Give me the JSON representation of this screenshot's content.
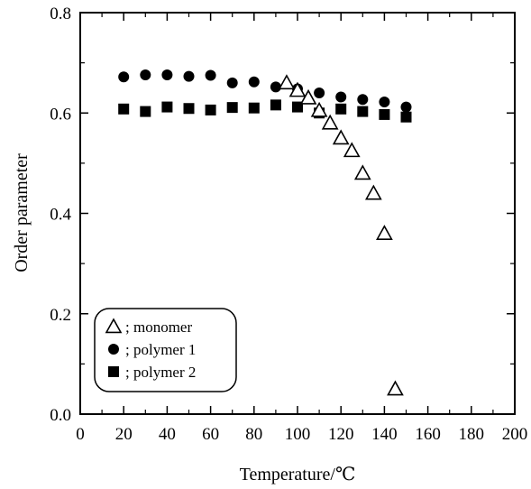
{
  "chart_data": {
    "type": "scatter",
    "title": "",
    "xlabel": "Temperature/℃",
    "ylabel": "Order parameter",
    "xlim": [
      0,
      200
    ],
    "ylim": [
      0,
      0.8
    ],
    "xticks": [
      "0",
      "20",
      "40",
      "60",
      "80",
      "100",
      "120",
      "140",
      "160",
      "180",
      "200"
    ],
    "yticks": [
      "0.0",
      "0.2",
      "0.4",
      "0.6",
      "0.8"
    ],
    "grid": false,
    "legend_position": "bottom-left",
    "series": [
      {
        "name": "; monomer",
        "marker": "open-triangle",
        "color": "#000000",
        "points": [
          [
            95,
            0.66
          ],
          [
            100,
            0.645
          ],
          [
            105,
            0.63
          ],
          [
            110,
            0.605
          ],
          [
            115,
            0.58
          ],
          [
            120,
            0.55
          ],
          [
            125,
            0.525
          ],
          [
            130,
            0.48
          ],
          [
            135,
            0.44
          ],
          [
            140,
            0.36
          ],
          [
            145,
            0.05
          ]
        ]
      },
      {
        "name": "; polymer 1",
        "marker": "filled-circle",
        "color": "#000000",
        "points": [
          [
            20,
            0.672
          ],
          [
            30,
            0.676
          ],
          [
            40,
            0.676
          ],
          [
            50,
            0.673
          ],
          [
            60,
            0.675
          ],
          [
            70,
            0.66
          ],
          [
            80,
            0.662
          ],
          [
            90,
            0.652
          ],
          [
            100,
            0.648
          ],
          [
            110,
            0.64
          ],
          [
            120,
            0.632
          ],
          [
            130,
            0.627
          ],
          [
            140,
            0.622
          ],
          [
            150,
            0.612
          ]
        ]
      },
      {
        "name": "; polymer 2",
        "marker": "filled-square",
        "color": "#000000",
        "points": [
          [
            20,
            0.608
          ],
          [
            30,
            0.603
          ],
          [
            40,
            0.612
          ],
          [
            50,
            0.609
          ],
          [
            60,
            0.606
          ],
          [
            70,
            0.611
          ],
          [
            80,
            0.61
          ],
          [
            90,
            0.616
          ],
          [
            100,
            0.612
          ],
          [
            110,
            0.6
          ],
          [
            120,
            0.608
          ],
          [
            130,
            0.603
          ],
          [
            140,
            0.597
          ],
          [
            150,
            0.592
          ]
        ]
      }
    ]
  }
}
